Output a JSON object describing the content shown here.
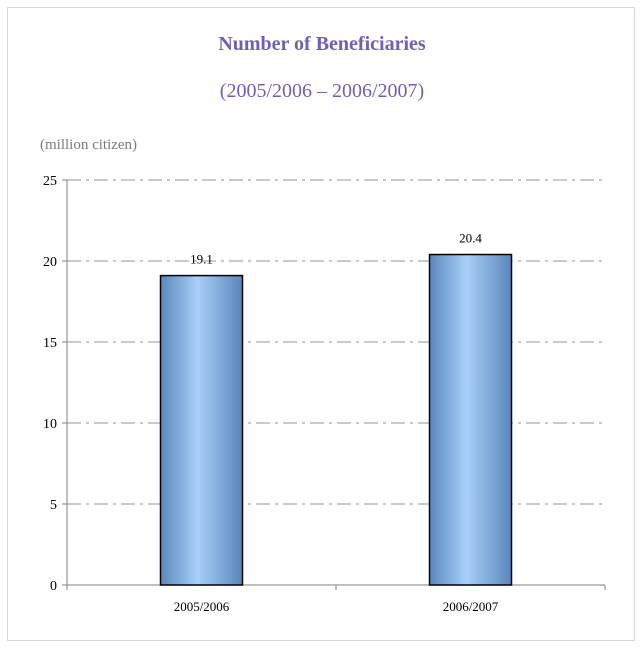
{
  "colors": {
    "title": "#6b62b8",
    "subtitle": "#6b62b8",
    "unit": "#7a7a7a",
    "border": "#d6d6ea",
    "gridline": "#b8b8b8",
    "bar_light": "#a8d0f8",
    "bar_dark": "#5a86bc"
  },
  "chart_data": {
    "type": "bar",
    "title": "Number of Beneficiaries",
    "subtitle": "(2005/2006 – 2006/2007)",
    "ylabel": "(million citizen)",
    "xlabel": "",
    "categories": [
      "2005/2006",
      "2006/2007"
    ],
    "values": [
      19.1,
      20.4
    ],
    "value_labels": [
      "19.1",
      "20.4"
    ],
    "ylim": [
      0,
      25
    ],
    "yticks": [
      "0",
      "5",
      "10",
      "15",
      "20",
      "25"
    ],
    "grid": true,
    "legend": "none"
  }
}
